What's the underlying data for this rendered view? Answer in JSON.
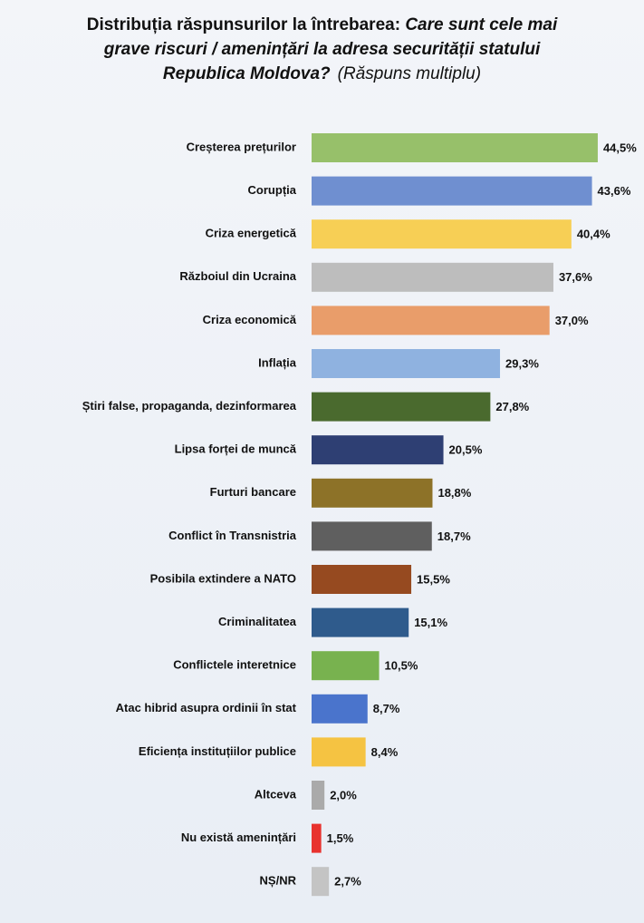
{
  "chart_data": {
    "type": "hbar",
    "title": "Distribuția răspunsurilor la întrebarea:",
    "question": [
      "Care sunt cele mai",
      "grave riscuri / amenințări la adresa securității statului",
      "Republica Moldova?"
    ],
    "note": "(Răspuns multiplu)",
    "categories": [
      "Creșterea prețurilor",
      "Corupția",
      "Criza energetică",
      "Războiul din Ucraina",
      "Criza economică",
      "Inflația",
      "Știri false, propaganda, dezinformarea",
      "Lipsa forței de muncă",
      "Furturi bancare",
      "Conflict în Transnistria",
      "Posibila extindere a NATO",
      "Criminalitatea",
      "Conflictele interetnice",
      "Atac hibrid asupra ordinii în stat",
      "Eficiența instituțiilor publice",
      "Altceva",
      "Nu există amenințări",
      "NȘ/NR"
    ],
    "values": [
      44.5,
      43.6,
      40.4,
      37.6,
      37.0,
      29.3,
      27.8,
      20.5,
      18.8,
      18.7,
      15.5,
      15.1,
      10.5,
      8.7,
      8.4,
      2.0,
      1.5,
      2.7
    ],
    "value_labels": [
      "44,5%",
      "43,6%",
      "40,4%",
      "37,6%",
      "37,0%",
      "29,3%",
      "27,8%",
      "20,5%",
      "18,8%",
      "18,7%",
      "15,5%",
      "15,1%",
      "10,5%",
      "8,7%",
      "8,4%",
      "2,0%",
      "1,5%",
      "2,7%"
    ],
    "colors": [
      "#97c06a",
      "#6f8fd0",
      "#f7cf55",
      "#bdbdbd",
      "#e99d6a",
      "#8fb2e0",
      "#4a6a2e",
      "#2e3f73",
      "#8d7228",
      "#5f5f5f",
      "#964a20",
      "#2f5b8c",
      "#78b24f",
      "#4a74cc",
      "#f5c342",
      "#aaaaaa",
      "#e8322e",
      "#c4c4c4"
    ],
    "xlim": [
      0,
      50
    ]
  }
}
